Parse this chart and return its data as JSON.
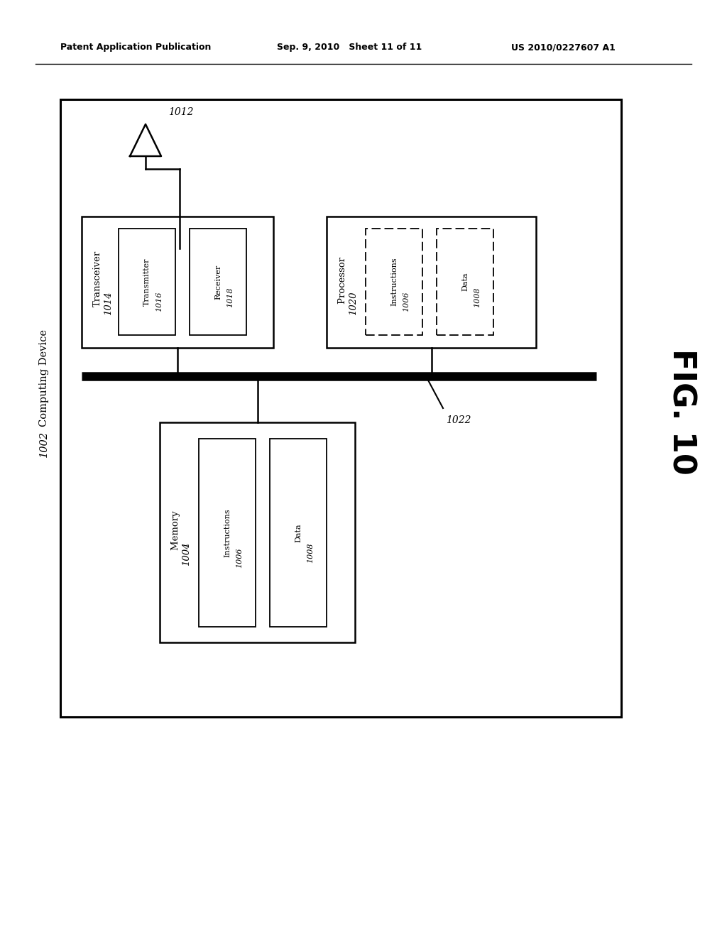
{
  "bg_color": "#ffffff",
  "header_left": "Patent Application Publication",
  "header_mid": "Sep. 9, 2010   Sheet 11 of 11",
  "header_right": "US 2010/0227607 A1",
  "fig_label": "FIG. 10",
  "outer_box_label": "Computing Device ",
  "outer_box_label_italic": "1002",
  "antenna_label": "1012",
  "bus_label": "1022",
  "transceiver_label": "Transceiver",
  "transceiver_num": "1014",
  "transmitter_label": "Transmitter",
  "transmitter_num": "1016",
  "receiver_label": "Receiver",
  "receiver_num": "1018",
  "processor_label": "Processor ",
  "processor_num": "1020",
  "proc_instr_label": "Instructions",
  "proc_instr_num": "1006",
  "proc_data_label": "Data",
  "proc_data_num": "1008",
  "memory_label": "Memory ",
  "memory_num": "1004",
  "mem_instr_label": "Instructions",
  "mem_instr_num": "1006",
  "mem_data_label": "Data",
  "mem_data_num": "1008"
}
